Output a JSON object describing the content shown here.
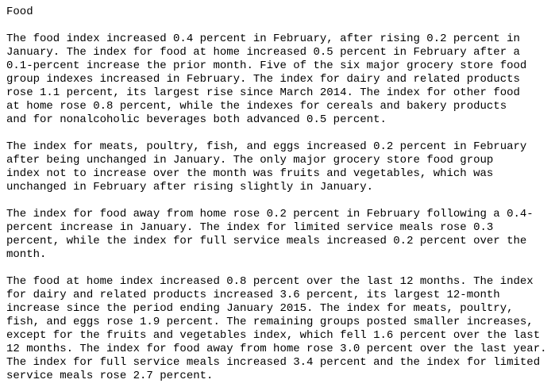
{
  "document": {
    "title": "Food",
    "paragraphs": [
      "The food index increased 0.4 percent in February, after rising 0.2 percent in\nJanuary. The index for food at home increased 0.5 percent in February after a\n0.1-percent increase the prior month. Five of the six major grocery store food\ngroup indexes increased in February. The index for dairy and related products\nrose 1.1 percent, its largest rise since March 2014. The index for other food\nat home rose 0.8 percent, while the indexes for cereals and bakery products\nand for nonalcoholic beverages both advanced 0.5 percent.",
      "The index for meats, poultry, fish, and eggs increased 0.2 percent in February\nafter being unchanged in January. The only major grocery store food group\nindex not to increase over the month was fruits and vegetables, which was\nunchanged in February after rising slightly in January.",
      "The index for food away from home rose 0.2 percent in February following a 0.4-\npercent increase in January. The index for limited service meals rose 0.3\npercent, while the index for full service meals increased 0.2 percent over the\nmonth.",
      "The food at home index increased 0.8 percent over the last 12 months. The index\nfor dairy and related products increased 3.6 percent, its largest 12-month\nincrease since the period ending January 2015. The index for meats, poultry,\nfish, and eggs rose 1.9 percent. The remaining groups posted smaller increases,\nexcept for the fruits and vegetables index, which fell 1.6 percent over the last\n12 months. The index for food away from home rose 3.0 percent over the last year.\nThe index for full service meals increased 3.4 percent and the index for limited\nservice meals rose 2.7 percent."
    ]
  }
}
